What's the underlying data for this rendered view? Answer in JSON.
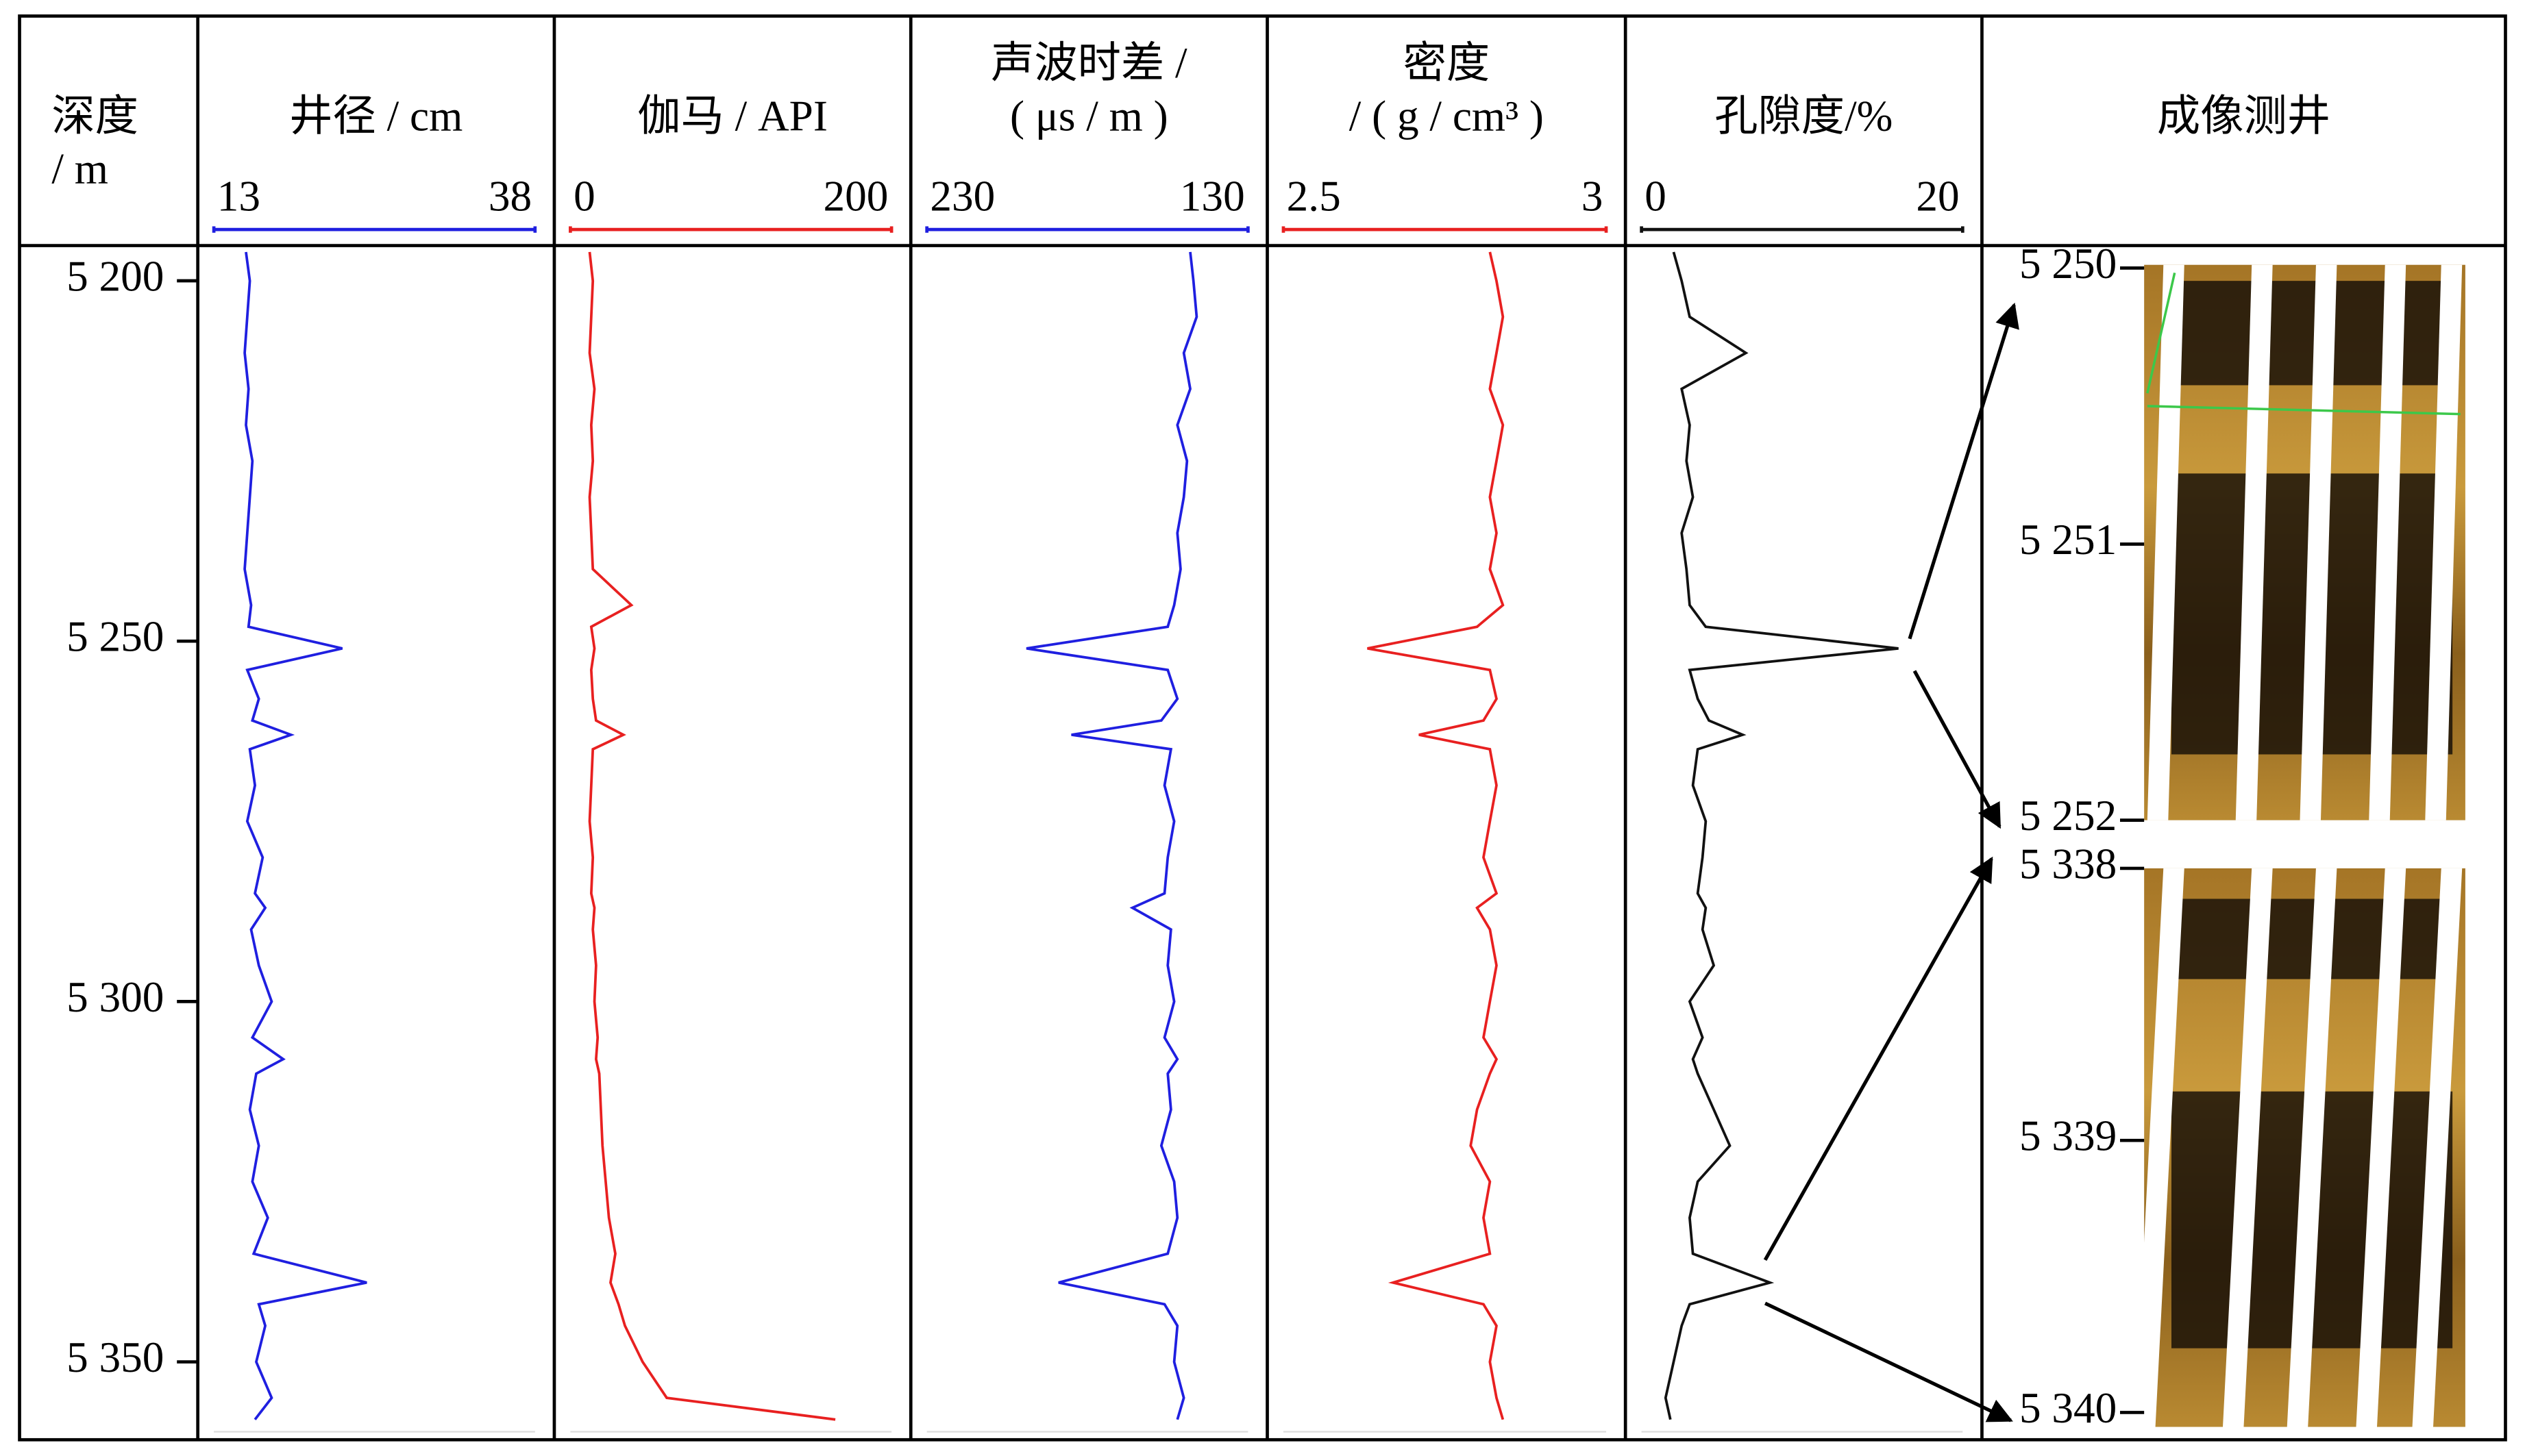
{
  "chart_data": {
    "type": "well-log",
    "title": [
      "深度",
      "/ m"
    ],
    "ylim": [
      5195,
      5360
    ],
    "yticks": [
      {
        "value": 5200,
        "label": "5 200"
      },
      {
        "value": 5250,
        "label": "5 250"
      },
      {
        "value": 5300,
        "label": "5 300"
      },
      {
        "value": 5350,
        "label": "5 350"
      }
    ],
    "depths": [
      5196,
      5200,
      5205,
      5210,
      5215,
      5220,
      5225,
      5230,
      5235,
      5240,
      5245,
      5248,
      5251,
      5254,
      5258,
      5261,
      5263,
      5265,
      5270,
      5275,
      5280,
      5285,
      5287,
      5290,
      5295,
      5300,
      5305,
      5308,
      5310,
      5315,
      5320,
      5325,
      5330,
      5335,
      5339,
      5342,
      5345,
      5350,
      5355,
      5358
    ],
    "tracks": [
      {
        "type": "line",
        "title": [
          "井径 / cm"
        ],
        "color": "#1f1fe0",
        "xlim": [
          13,
          38
        ],
        "xticks": [
          13,
          38
        ],
        "values": [
          15.5,
          15.8,
          15.6,
          15.4,
          15.7,
          15.5,
          16.0,
          15.8,
          15.6,
          15.4,
          15.9,
          15.7,
          23.0,
          15.6,
          16.5,
          16.0,
          19.0,
          15.8,
          16.2,
          15.6,
          16.8,
          16.2,
          17.0,
          15.9,
          16.5,
          17.5,
          16.0,
          18.4,
          16.3,
          15.8,
          16.5,
          16.0,
          17.2,
          16.1,
          24.9,
          16.5,
          17.0,
          16.3,
          17.5,
          16.2
        ]
      },
      {
        "type": "line",
        "title": [
          "伽马 / API"
        ],
        "color": "#e82020",
        "xlim": [
          0,
          200
        ],
        "xticks": [
          0,
          200
        ],
        "values": [
          12,
          14,
          13,
          12,
          15,
          13,
          14,
          12,
          13,
          14,
          38,
          13,
          15,
          13,
          14,
          16,
          33,
          14,
          13,
          12,
          14,
          13,
          15,
          14,
          16,
          15,
          17,
          16,
          18,
          19,
          20,
          22,
          24,
          28,
          25,
          30,
          34,
          45,
          60,
          165
        ]
      },
      {
        "type": "line",
        "title": [
          "声波时差 /",
          "( μs / m )"
        ],
        "color": "#1f1fe0",
        "xlim": [
          230,
          130
        ],
        "xticks": [
          230,
          130
        ],
        "values": [
          148,
          147,
          146,
          150,
          148,
          152,
          149,
          150,
          152,
          151,
          153,
          155,
          199,
          155,
          152,
          157,
          185,
          154,
          156,
          153,
          155,
          156,
          166,
          154,
          155,
          153,
          156,
          152,
          155,
          154,
          157,
          153,
          152,
          155,
          189,
          156,
          152,
          153,
          150,
          152
        ]
      },
      {
        "type": "line",
        "title": [
          "密度",
          "/ ( g / cm³ )"
        ],
        "color": "#e82020",
        "xlim": [
          2.5,
          3
        ],
        "xticks": [
          2.5,
          3
        ],
        "values": [
          2.82,
          2.83,
          2.84,
          2.83,
          2.82,
          2.84,
          2.83,
          2.82,
          2.83,
          2.82,
          2.84,
          2.8,
          2.63,
          2.82,
          2.83,
          2.81,
          2.71,
          2.82,
          2.83,
          2.82,
          2.81,
          2.83,
          2.8,
          2.82,
          2.83,
          2.82,
          2.81,
          2.83,
          2.82,
          2.8,
          2.79,
          2.82,
          2.81,
          2.82,
          2.67,
          2.81,
          2.83,
          2.82,
          2.83,
          2.84
        ]
      },
      {
        "type": "line",
        "title": [
          "孔隙度/%"
        ],
        "color": "#111111",
        "xlim": [
          0,
          20
        ],
        "xticks": [
          0,
          20
        ],
        "values": [
          2.0,
          2.5,
          3.0,
          6.5,
          2.5,
          3.0,
          2.8,
          3.2,
          2.5,
          2.8,
          3.0,
          4.0,
          16.0,
          3.0,
          3.5,
          4.2,
          6.3,
          3.5,
          3.2,
          4.0,
          3.8,
          3.5,
          4.0,
          3.8,
          4.5,
          3.0,
          3.8,
          3.2,
          3.5,
          4.5,
          5.5,
          3.5,
          3.0,
          3.2,
          8.0,
          3.0,
          2.5,
          2.0,
          1.5,
          1.8
        ]
      }
    ],
    "image_track": {
      "title": [
        "成像测井"
      ],
      "panels": [
        {
          "ylim": [
            5250,
            5252
          ],
          "yticks": [
            {
              "value": 5250,
              "label": "5 250"
            },
            {
              "value": 5251,
              "label": "5 251"
            },
            {
              "value": 5252,
              "label": "5 252"
            }
          ]
        },
        {
          "ylim": [
            5338,
            5340
          ],
          "yticks": [
            {
              "value": 5338,
              "label": "5 338"
            },
            {
              "value": 5339,
              "label": "5 339"
            },
            {
              "value": 5340,
              "label": "5 340"
            }
          ]
        }
      ]
    }
  }
}
